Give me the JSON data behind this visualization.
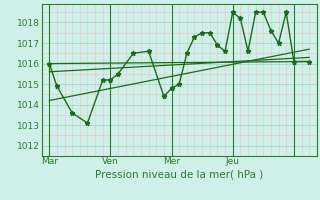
{
  "xlabel": "Pression niveau de la mer( hPa )",
  "bg_color": "#cef0e8",
  "line_color": "#1a6b1a",
  "grid_major_color": "#a8d8c8",
  "grid_minor_color": "#e8c0c0",
  "axis_color": "#2d7a2d",
  "ylim": [
    1011.5,
    1018.9
  ],
  "xlim": [
    0,
    108
  ],
  "xtick_positions": [
    3,
    27,
    51,
    75,
    99
  ],
  "xtick_labels": [
    "Mar",
    "Ven",
    "Mer",
    "Jeu",
    ""
  ],
  "ytick_positions": [
    1012,
    1013,
    1014,
    1015,
    1016,
    1017,
    1018
  ],
  "main_line_x": [
    3,
    6,
    12,
    18,
    24,
    27,
    30,
    36,
    42,
    48,
    51,
    54,
    57,
    60,
    63,
    66,
    69,
    72,
    75,
    78,
    81,
    84,
    87,
    90,
    93,
    96,
    99,
    105
  ],
  "main_line_y": [
    1016.0,
    1014.9,
    1013.6,
    1013.1,
    1015.2,
    1015.2,
    1015.5,
    1016.5,
    1016.6,
    1014.4,
    1014.8,
    1015.0,
    1016.5,
    1017.3,
    1017.5,
    1017.5,
    1016.9,
    1016.6,
    1018.5,
    1018.2,
    1016.6,
    1018.5,
    1018.5,
    1017.6,
    1017.0,
    1018.5,
    1016.1,
    1016.1
  ],
  "trend1_x": [
    3,
    105
  ],
  "trend1_y": [
    1016.0,
    1016.1
  ],
  "trend2_x": [
    3,
    105
  ],
  "trend2_y": [
    1015.6,
    1016.3
  ],
  "trend3_x": [
    3,
    105
  ],
  "trend3_y": [
    1014.2,
    1016.7
  ],
  "vline_positions": [
    3,
    27,
    51,
    75,
    99
  ]
}
